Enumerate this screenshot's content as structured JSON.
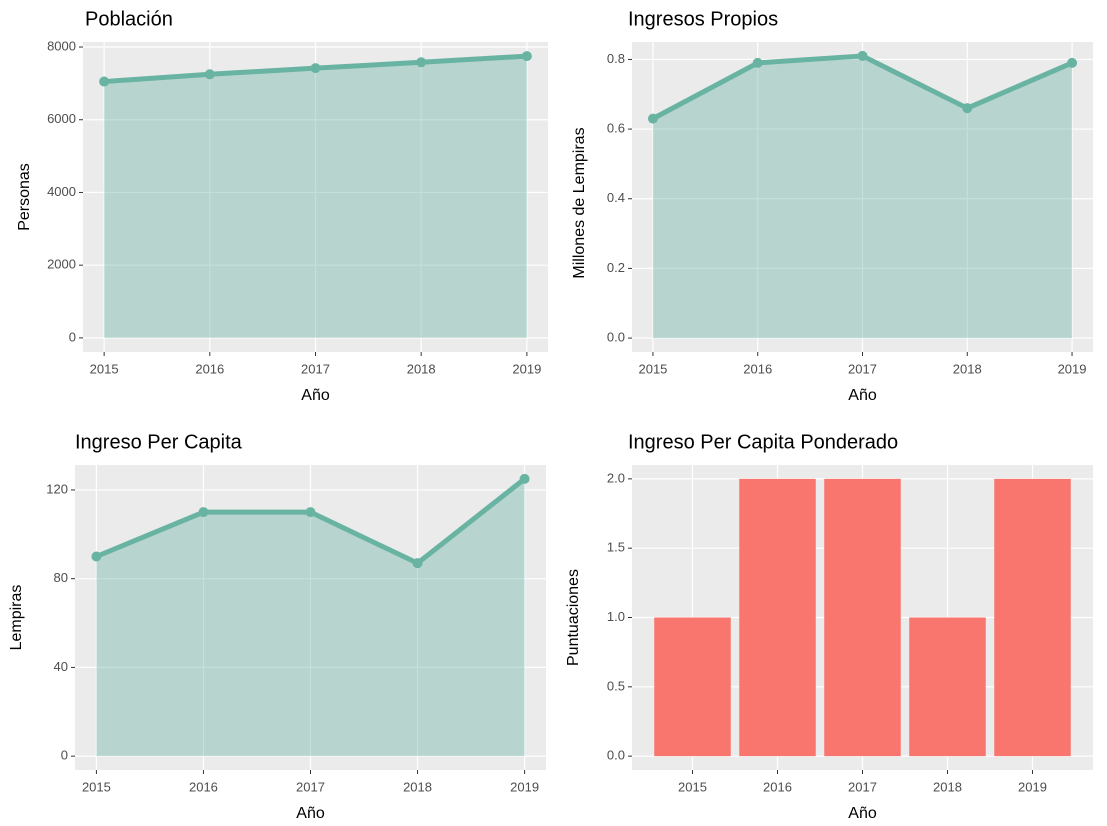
{
  "chart_data": [
    {
      "type": "area-line",
      "title": "Población",
      "xlabel": "Año",
      "ylabel": "Personas",
      "x": [
        2015,
        2016,
        2017,
        2018,
        2019
      ],
      "values": [
        7050,
        7250,
        7420,
        7580,
        7750
      ],
      "color": "#69b3a2",
      "xlim": [
        2014.8,
        2019.2
      ],
      "xticks": [
        2015,
        2016,
        2017,
        2018,
        2019
      ],
      "ylim": [
        -388,
        8138
      ],
      "yticks": [
        0,
        2000,
        4000,
        6000,
        8000
      ],
      "grid": true
    },
    {
      "type": "area-line",
      "title": "Ingresos Propios",
      "xlabel": "Año",
      "ylabel": "Millones de Lempiras",
      "x": [
        2015,
        2016,
        2017,
        2018,
        2019
      ],
      "values": [
        0.63,
        0.79,
        0.81,
        0.66,
        0.79
      ],
      "color": "#69b3a2",
      "xlim": [
        2014.8,
        2019.2
      ],
      "xticks": [
        2015,
        2016,
        2017,
        2018,
        2019
      ],
      "ylim": [
        -0.04,
        0.85
      ],
      "yticks": [
        {
          "value": 0,
          "label": "0.0"
        },
        0.2,
        0.4,
        0.6,
        0.8
      ],
      "grid": true
    },
    {
      "type": "area-line",
      "title": "Ingreso Per Capita",
      "xlabel": "Año",
      "ylabel": "Lempiras",
      "x": [
        2015,
        2016,
        2017,
        2018,
        2019
      ],
      "values": [
        90,
        110,
        110,
        87,
        125
      ],
      "color": "#69b3a2",
      "xlim": [
        2014.8,
        2019.2
      ],
      "xticks": [
        2015,
        2016,
        2017,
        2018,
        2019
      ],
      "ylim": [
        -6.25,
        131.25
      ],
      "yticks": [
        0,
        40,
        80,
        120
      ],
      "grid": true
    },
    {
      "type": "bar",
      "title": "Ingreso Per Capita Ponderado",
      "xlabel": "Año",
      "ylabel": "Puntuaciones",
      "categories": [
        "2015",
        "2016",
        "2017",
        "2018",
        "2019"
      ],
      "values": [
        1,
        2,
        2,
        1,
        2
      ],
      "color": "#F8766D",
      "ylim": [
        -0.1,
        2.1
      ],
      "yticks": [
        {
          "value": 0,
          "label": "0.0"
        },
        0.5,
        {
          "value": 1,
          "label": "1.0"
        },
        1.5,
        {
          "value": 2,
          "label": "2.0"
        }
      ],
      "grid": true
    }
  ]
}
